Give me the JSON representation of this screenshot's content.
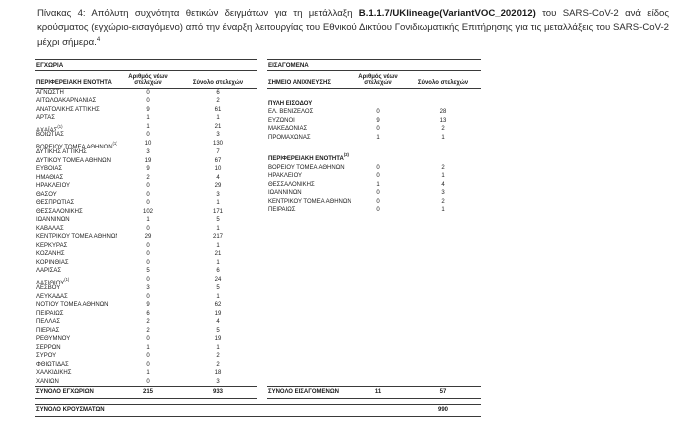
{
  "caption": {
    "prefix": "Πίνακας 4:  Απόλυτη συχνότητα θετικών δειγμάτων για τη μετάλλαξη ",
    "bold": "B.1.1.7/UKlineage(VariantVOC_202012)",
    "suffix": " του SARS-CoV-2 ανά είδος κρούσματος (εγχώριο-εισαγόμενο) από την έναρξη λειτουργίας του Εθνικού Δικτύου Γονιδιωματικής Επιτήρησης για τις μεταλλάξεις του SARS-CoV-2 μέχρι σήμερα.",
    "footnote_mark": "4"
  },
  "domestic_table": {
    "section_title": "ΕΓΧΩΡΙΑ",
    "col_name": "ΠΕΡΙΦΕΡΕΙΑΚΗ ΕΝΟΤΗΤΑ",
    "col_new": "Αριθμός νέων στελεχών",
    "col_total": "Σύνολο στελεχών",
    "rows": [
      {
        "name": "ΑΓΝΩΣΤΗ",
        "sup": "",
        "new": "0",
        "total": "6"
      },
      {
        "name": "ΑΙΤΩΛΟΑΚΑΡΝΑΝΙΑΣ",
        "sup": "",
        "new": "0",
        "total": "2"
      },
      {
        "name": "ΑΝΑΤΟΛΙΚΗΣ ΑΤΤΙΚΗΣ",
        "sup": "",
        "new": "9",
        "total": "61"
      },
      {
        "name": "ΑΡΤΑΣ",
        "sup": "",
        "new": "1",
        "total": "1"
      },
      {
        "name": "ΑΧΑΪΑΣ",
        "sup": "(1)",
        "new": "1",
        "total": "21"
      },
      {
        "name": "ΒΟΙΩΤΙΑΣ",
        "sup": "",
        "new": "0",
        "total": "3"
      },
      {
        "name": "ΒΟΡΕΙΟΥ ΤΟΜΕΑ ΑΘΗΝΩΝ",
        "sup": "(1)",
        "new": "10",
        "total": "130"
      },
      {
        "name": "ΔΥΤΙΚΗΣ ΑΤΤΙΚΗΣ",
        "sup": "",
        "new": "3",
        "total": "7"
      },
      {
        "name": "ΔΥΤΙΚΟΥ ΤΟΜΕΑ ΑΘΗΝΩΝ",
        "sup": "",
        "new": "19",
        "total": "67"
      },
      {
        "name": "ΕΥΒΟΙΑΣ",
        "sup": "",
        "new": "9",
        "total": "10"
      },
      {
        "name": "ΗΜΑΘΙΑΣ",
        "sup": "",
        "new": "2",
        "total": "4"
      },
      {
        "name": "ΗΡΑΚΛΕΙΟΥ",
        "sup": "",
        "new": "0",
        "total": "29"
      },
      {
        "name": "ΘΑΣΟΥ",
        "sup": "",
        "new": "0",
        "total": "3"
      },
      {
        "name": "ΘΕΣΠΡΩΤΙΑΣ",
        "sup": "",
        "new": "0",
        "total": "1"
      },
      {
        "name": "ΘΕΣΣΑΛΟΝΙΚΗΣ",
        "sup": "",
        "new": "102",
        "total": "171"
      },
      {
        "name": "ΙΩΑΝΝΙΝΩΝ",
        "sup": "",
        "new": "1",
        "total": "5"
      },
      {
        "name": "ΚΑΒΑΛΑΣ",
        "sup": "",
        "new": "0",
        "total": "1"
      },
      {
        "name": "ΚΕΝΤΡΙΚΟΥ ΤΟΜΕΑ ΑΘΗΝΩΝ",
        "sup": "",
        "new": "29",
        "total": "217"
      },
      {
        "name": "ΚΕΡΚΥΡΑΣ",
        "sup": "",
        "new": "0",
        "total": "1"
      },
      {
        "name": "ΚΟΖΑΝΗΣ",
        "sup": "",
        "new": "0",
        "total": "21"
      },
      {
        "name": "ΚΟΡΙΝΘΙΑΣ",
        "sup": "",
        "new": "0",
        "total": "1"
      },
      {
        "name": "ΛΑΡΙΣΑΣ",
        "sup": "",
        "new": "5",
        "total": "6"
      },
      {
        "name": "ΛΑΣΙΘΙΟΥ",
        "sup": "(1)",
        "new": "0",
        "total": "24"
      },
      {
        "name": "ΛΕΣΒΟΥ",
        "sup": "",
        "new": "3",
        "total": "5"
      },
      {
        "name": "ΛΕΥΚΑΔΑΣ",
        "sup": "",
        "new": "0",
        "total": "1"
      },
      {
        "name": "ΝΟΤΙΟΥ ΤΟΜΕΑ ΑΘΗΝΩΝ",
        "sup": "",
        "new": "9",
        "total": "62"
      },
      {
        "name": "ΠΕΙΡΑΙΩΣ",
        "sup": "",
        "new": "6",
        "total": "19"
      },
      {
        "name": "ΠΕΛΛΑΣ",
        "sup": "",
        "new": "2",
        "total": "4"
      },
      {
        "name": "ΠΙΕΡΙΑΣ",
        "sup": "",
        "new": "2",
        "total": "5"
      },
      {
        "name": "ΡΕΘΥΜΝΟΥ",
        "sup": "",
        "new": "0",
        "total": "19"
      },
      {
        "name": "ΣΕΡΡΩΝ",
        "sup": "",
        "new": "1",
        "total": "1"
      },
      {
        "name": "ΣΥΡΟΥ",
        "sup": "",
        "new": "0",
        "total": "2"
      },
      {
        "name": "ΦΘΙΩΤΙΔΑΣ",
        "sup": "",
        "new": "0",
        "total": "2"
      },
      {
        "name": "ΧΑΛΚΙΔΙΚΗΣ",
        "sup": "",
        "new": "1",
        "total": "18"
      },
      {
        "name": "ΧΑΝΙΩΝ",
        "sup": "",
        "new": "0",
        "total": "3"
      }
    ],
    "totals": {
      "label": "ΣΥΝΟΛΟ ΕΓΧΩΡΙΩΝ",
      "new": "215",
      "total": "933"
    }
  },
  "imported_table": {
    "section_title": "ΕΙΣΑΓΟΜΕΝΑ",
    "col_name": "ΣΗΜΕΙΟ ΑΝΙΧΝΕΥΣΗΣ",
    "col_new": "Αριθμός νέων στελεχών",
    "col_total": "Σύνολο στελεχών",
    "groups": [
      {
        "label": "ΠΥΛΗ ΕΙΣΟΔΟΥ",
        "sup": "",
        "rows": [
          {
            "name": "ΕΛ. ΒΕΝΙΖΕΛΟΣ",
            "sup": "",
            "new": "0",
            "total": "28"
          },
          {
            "name": "ΕΥΖΩΝΟΙ",
            "sup": "",
            "new": "9",
            "total": "13"
          },
          {
            "name": "ΜΑΚΕΔΟΝΙΑΣ",
            "sup": "",
            "new": "0",
            "total": "2"
          },
          {
            "name": "ΠΡΟΜΑΧΩΝΑΣ",
            "sup": "",
            "new": "1",
            "total": "1"
          }
        ]
      },
      {
        "label": "ΠΕΡΙΦΕΡΕΙΑΚΗ ΕΝΟΤΗΤΑ",
        "sup": "(2)",
        "rows": [
          {
            "name": "ΒΟΡΕΙΟΥ ΤΟΜΕΑ ΑΘΗΝΩΝ",
            "sup": "",
            "new": "0",
            "total": "2"
          },
          {
            "name": "ΗΡΑΚΛΕΙΟΥ",
            "sup": "",
            "new": "0",
            "total": "1"
          },
          {
            "name": "ΘΕΣΣΑΛΟΝΙΚΗΣ",
            "sup": "",
            "new": "1",
            "total": "4"
          },
          {
            "name": "ΙΩΑΝΝΙΝΩΝ",
            "sup": "",
            "new": "0",
            "total": "3"
          },
          {
            "name": "ΚΕΝΤΡΙΚΟΥ ΤΟΜΕΑ ΑΘΗΝΩΝ",
            "sup": "",
            "new": "0",
            "total": "2"
          },
          {
            "name": "ΠΕΙΡΑΙΩΣ",
            "sup": "",
            "new": "0",
            "total": "1"
          }
        ]
      }
    ],
    "totals": {
      "label": "ΣΥΝΟΛΟ ΕΙΣΑΓΟΜΕΝΩΝ",
      "new": "11",
      "total": "57"
    }
  },
  "grand_total": {
    "label": "ΣΥΝΟΛΟ ΚΡΟΥΣΜΑΤΩΝ",
    "new": "",
    "total": "990"
  }
}
